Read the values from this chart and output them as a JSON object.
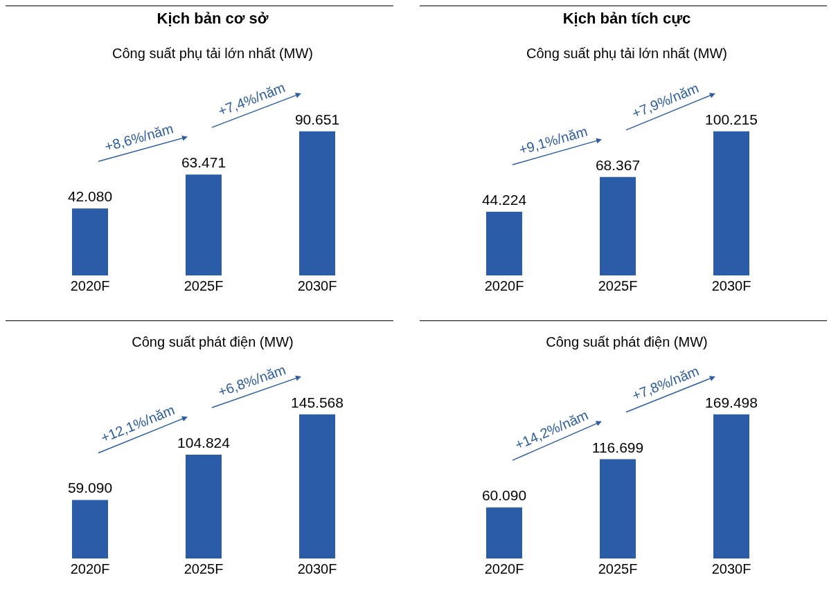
{
  "chart_data": [
    {
      "type": "bar",
      "title": "Kịch bản cơ sở",
      "subtitle": "Công suất phụ tải lớn nhất (MW)",
      "categories": [
        "2020F",
        "2025F",
        "2030F"
      ],
      "values": [
        42080,
        63471,
        90651
      ],
      "value_labels": [
        "42.080",
        "63.471",
        "90.651"
      ],
      "color": "#2b5ca8",
      "annotations": [
        "+8,6%/năm",
        "+7,4%/năm"
      ]
    },
    {
      "type": "bar",
      "title": "Kịch bản tích cực",
      "subtitle": "Công suất phụ tải lớn nhất (MW)",
      "categories": [
        "2020F",
        "2025F",
        "2030F"
      ],
      "values": [
        44224,
        68367,
        100215
      ],
      "value_labels": [
        "44.224",
        "68.367",
        "100.215"
      ],
      "color": "#2b5ca8",
      "annotations": [
        "+9,1%/năm",
        "+7,9%/năm"
      ]
    },
    {
      "type": "bar",
      "subtitle": "Công suất phát điện (MW)",
      "categories": [
        "2020F",
        "2025F",
        "2030F"
      ],
      "values": [
        59090,
        104824,
        145568
      ],
      "value_labels": [
        "59.090",
        "104.824",
        "145.568"
      ],
      "color": "#2b5ca8",
      "annotations": [
        "+12,1%/năm",
        "+6,8%/năm"
      ]
    },
    {
      "type": "bar",
      "subtitle": "Công suất phát điện (MW)",
      "categories": [
        "2020F",
        "2025F",
        "2030F"
      ],
      "values": [
        60090,
        116699,
        169498
      ],
      "value_labels": [
        "60.090",
        "116.699",
        "169.498"
      ],
      "color": "#2b5ca8",
      "annotations": [
        "+14,2%/năm",
        "+7,8%/năm"
      ]
    }
  ]
}
